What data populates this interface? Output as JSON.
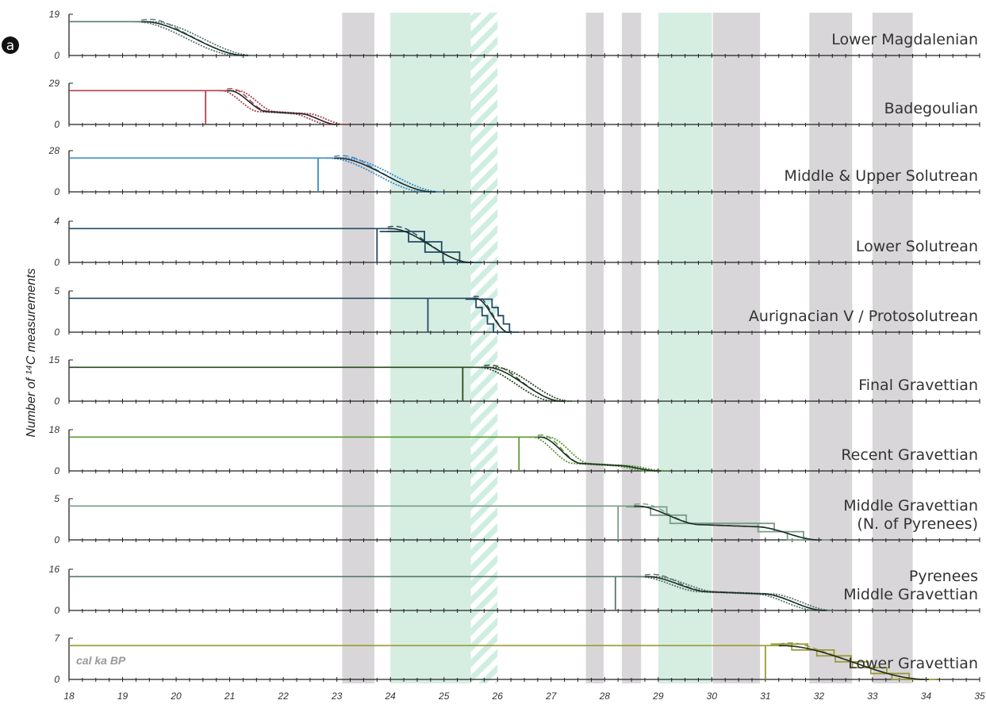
{
  "chart_data": {
    "type": "line",
    "panel_marker": "a",
    "ylabel": "Number of ¹⁴C measurements",
    "unit_label": "cal ka BP",
    "xlim": [
      18,
      35
    ],
    "x_ticks": [
      "18",
      "19",
      "20",
      "21",
      "22",
      "23",
      "24",
      "25",
      "26",
      "27",
      "28",
      "29",
      "30",
      "31",
      "32",
      "33",
      "34",
      "35"
    ],
    "gray_bands": [
      [
        23.1,
        23.7
      ],
      [
        27.65,
        27.98
      ],
      [
        28.32,
        28.68
      ],
      [
        30.02,
        30.9
      ],
      [
        31.82,
        32.62
      ],
      [
        33.0,
        33.75
      ]
    ],
    "green_bands": [
      [
        24.0,
        25.5
      ],
      [
        29.0,
        30.0
      ]
    ],
    "hatched_bands": [
      [
        25.5,
        26.0
      ]
    ],
    "panels": [
      {
        "label": [
          "Lower Magdalenian"
        ],
        "ymax": 19,
        "color": "#5b7a76",
        "start": null,
        "onset": 19.4,
        "end": 21.3
      },
      {
        "label": [
          "Badegoulian"
        ],
        "ymax": 29,
        "color": "#b0414f",
        "start": 20.55,
        "onset": 21.0,
        "end": 23.0,
        "shoulder": 0.38
      },
      {
        "label": [
          "Middle & Upper Solutrean"
        ],
        "ymax": 28,
        "color": "#3a8bc7",
        "start": 22.65,
        "onset": 23.0,
        "end": 24.8
      },
      {
        "label": [
          "Lower Solutrean"
        ],
        "ymax": 4,
        "color": "#244a63",
        "start": 23.75,
        "onset": 24.0,
        "end": 25.5,
        "stepped": true
      },
      {
        "label": [
          "Aurignacian V / Protosolutrean"
        ],
        "ymax": 5,
        "color": "#254a68",
        "start": 24.7,
        "onset": 25.6,
        "end": 26.2,
        "stepped": true
      },
      {
        "label": [
          "Final Gravettian"
        ],
        "ymax": 15,
        "color": "#2a4a1e",
        "start": 25.35,
        "onset": 25.8,
        "end": 27.2
      },
      {
        "label": [
          "Recent Gravettian"
        ],
        "ymax": 18,
        "color": "#5a9a33",
        "start": 26.4,
        "onset": 26.8,
        "end": 29.0,
        "shoulder": 0.22
      },
      {
        "label": [
          "Middle Gravettian",
          "(N. of Pyrenees)"
        ],
        "ymax": 5,
        "color": "#7a9e86",
        "start": 28.25,
        "onset": 28.6,
        "end": 32.0,
        "shoulder": 0.45,
        "stepped": true
      },
      {
        "label": [
          "Pyrenees",
          "Middle Gravettian"
        ],
        "ymax": 16,
        "color": "#56786a",
        "start": 28.2,
        "onset": 28.8,
        "end": 32.1,
        "shoulder": 0.55
      },
      {
        "label": [
          "Lower Gravettian"
        ],
        "ymax": 7,
        "color": "#9a9a33",
        "start": 31.0,
        "onset": 31.3,
        "end": 34.0,
        "stepped": true
      }
    ]
  }
}
